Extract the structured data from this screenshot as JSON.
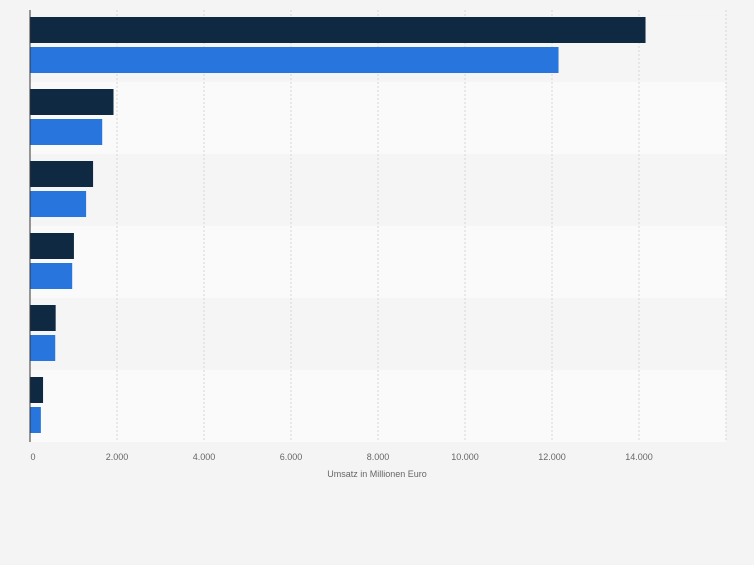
{
  "chart_data": {
    "type": "bar",
    "orientation": "horizontal",
    "categories": [
      "",
      "",
      "",
      "",
      "",
      ""
    ],
    "series": [
      {
        "values": [
          14150,
          1920,
          1450,
          1010,
          590,
          300
        ]
      },
      {
        "values": [
          12150,
          1660,
          1290,
          970,
          580,
          250
        ]
      }
    ],
    "xlabel": "Umsatz in Millionen Euro",
    "ylabel": "",
    "xlim": [
      0,
      16000
    ],
    "x_ticks": [
      0,
      2000,
      4000,
      6000,
      8000,
      10000,
      12000,
      14000
    ],
    "x_tick_labels": [
      "0",
      "2.000",
      "4.000",
      "6.000",
      "8.000",
      "10.000",
      "12.000",
      "14.000"
    ],
    "grid": true,
    "legend": "none"
  },
  "colors": {
    "series_0": "#0f2942",
    "series_1": "#2876dd",
    "band_odd": "#f5f5f5",
    "band_even": "#fafafa",
    "grid": "#d6d6d6",
    "axis": "#333333",
    "text": "#666666"
  }
}
